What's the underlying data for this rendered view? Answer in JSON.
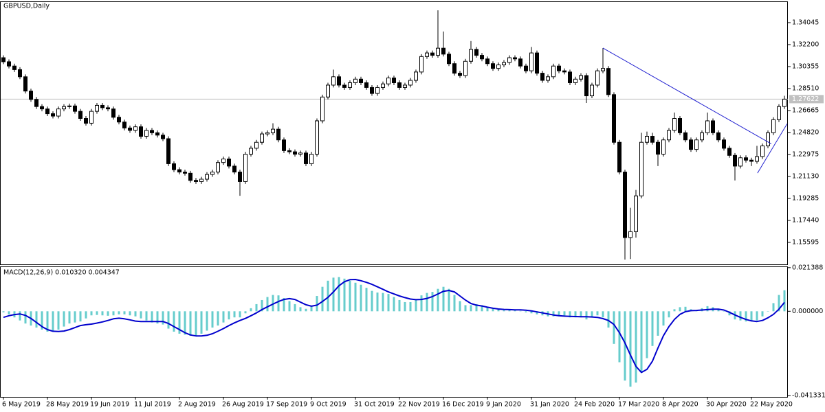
{
  "chart_data": [
    {
      "type": "candlestick",
      "title": "GBPUSD,Daily",
      "categories": [
        "6 May 2019",
        null,
        null,
        null,
        null,
        null,
        null,
        null,
        "28 May 2019",
        null,
        null,
        null,
        null,
        null,
        null,
        null,
        "19 Jun 2019",
        null,
        null,
        null,
        null,
        null,
        null,
        null,
        "11 Jul 2019",
        null,
        null,
        null,
        null,
        null,
        null,
        null,
        "2 Aug 2019",
        null,
        null,
        null,
        null,
        null,
        null,
        null,
        "26 Aug 2019",
        null,
        null,
        null,
        null,
        null,
        null,
        null,
        "17 Sep 2019",
        null,
        null,
        null,
        null,
        null,
        null,
        null,
        "9 Oct 2019",
        null,
        null,
        null,
        null,
        null,
        null,
        null,
        "31 Oct 2019",
        null,
        null,
        null,
        null,
        null,
        null,
        null,
        "22 Nov 2019",
        null,
        null,
        null,
        null,
        null,
        null,
        null,
        "16 Dec 2019",
        null,
        null,
        null,
        null,
        null,
        null,
        null,
        "9 Jan 2020",
        null,
        null,
        null,
        null,
        null,
        null,
        null,
        "31 Jan 2020",
        null,
        null,
        null,
        null,
        null,
        null,
        null,
        "24 Feb 2020",
        null,
        null,
        null,
        null,
        null,
        null,
        null,
        "17 Mar 2020",
        null,
        null,
        null,
        null,
        null,
        null,
        null,
        "8 Apr 2020",
        null,
        null,
        null,
        null,
        null,
        null,
        null,
        "30 Apr 2020",
        null,
        null,
        null,
        null,
        null,
        null,
        null,
        "22 May 2020",
        null,
        null,
        null,
        null,
        null,
        null
      ],
      "open": [
        1.311,
        1.3076,
        1.304,
        1.301,
        1.295,
        1.283,
        1.276,
        1.27,
        1.268,
        1.264,
        1.262,
        1.268,
        1.27,
        1.2705,
        1.266,
        1.26,
        1.256,
        1.266,
        1.271,
        1.269,
        1.268,
        1.261,
        1.257,
        1.252,
        1.25,
        1.253,
        1.245,
        1.25,
        1.248,
        1.246,
        1.243,
        1.222,
        1.217,
        1.215,
        1.214,
        1.208,
        1.207,
        1.209,
        1.213,
        1.215,
        1.223,
        1.226,
        1.22,
        1.215,
        1.207,
        1.23,
        1.235,
        1.24,
        1.247,
        1.248,
        1.251,
        1.242,
        1.233,
        1.232,
        1.23,
        1.231,
        1.222,
        1.23,
        1.258,
        1.278,
        1.288,
        1.295,
        1.288,
        1.286,
        1.29,
        1.293,
        1.29,
        1.286,
        1.281,
        1.286,
        1.289,
        1.294,
        1.29,
        1.286,
        1.288,
        1.292,
        1.299,
        1.312,
        1.315,
        1.313,
        1.319,
        1.314,
        1.306,
        1.298,
        1.296,
        1.308,
        1.318,
        1.313,
        1.31,
        1.306,
        1.302,
        1.305,
        1.307,
        1.311,
        1.31,
        1.304,
        1.3,
        1.315,
        1.298,
        1.292,
        1.295,
        1.304,
        1.3,
        1.299,
        1.29,
        1.293,
        1.296,
        1.279,
        1.288,
        1.3,
        1.302,
        1.28,
        1.24,
        1.215,
        1.16,
        1.165,
        1.195,
        1.24,
        1.245,
        1.24,
        1.23,
        1.242,
        1.25,
        1.26,
        1.248,
        1.242,
        1.234,
        1.242,
        1.248,
        1.258,
        1.248,
        1.242,
        1.235,
        1.229,
        1.22,
        1.227,
        1.225,
        1.224,
        1.228,
        1.237,
        1.248,
        1.259,
        1.27
      ],
      "high": [
        1.313,
        1.3096,
        1.306,
        1.303,
        1.297,
        1.285,
        1.278,
        1.272,
        1.27,
        1.266,
        1.27,
        1.272,
        1.2725,
        1.2725,
        1.268,
        1.262,
        1.268,
        1.273,
        1.273,
        1.271,
        1.27,
        1.263,
        1.259,
        1.254,
        1.255,
        1.255,
        1.252,
        1.252,
        1.25,
        1.248,
        1.245,
        1.224,
        1.219,
        1.217,
        1.216,
        1.21,
        1.211,
        1.215,
        1.217,
        1.225,
        1.228,
        1.228,
        1.222,
        1.217,
        1.232,
        1.237,
        1.242,
        1.249,
        1.25,
        1.256,
        1.253,
        1.244,
        1.235,
        1.234,
        1.233,
        1.233,
        1.232,
        1.26,
        1.28,
        1.29,
        1.301,
        1.297,
        1.29,
        1.292,
        1.295,
        1.295,
        1.292,
        1.288,
        1.288,
        1.291,
        1.296,
        1.296,
        1.292,
        1.29,
        1.294,
        1.301,
        1.314,
        1.317,
        1.317,
        1.3508,
        1.333,
        1.316,
        1.308,
        1.3,
        1.31,
        1.325,
        1.32,
        1.315,
        1.312,
        1.308,
        1.307,
        1.309,
        1.313,
        1.313,
        1.312,
        1.306,
        1.32,
        1.317,
        1.3,
        1.297,
        1.306,
        1.306,
        1.302,
        1.301,
        1.295,
        1.298,
        1.298,
        1.29,
        1.302,
        1.3191,
        1.304,
        1.282,
        1.242,
        1.217,
        1.185,
        1.2,
        1.248,
        1.249,
        1.248,
        1.242,
        1.244,
        1.252,
        1.265,
        1.262,
        1.25,
        1.244,
        1.244,
        1.25,
        1.265,
        1.26,
        1.25,
        1.244,
        1.237,
        1.231,
        1.229,
        1.229,
        1.227,
        1.237,
        1.239,
        1.25,
        1.261,
        1.272,
        1.279
      ],
      "low": [
        1.3056,
        1.302,
        1.299,
        1.293,
        1.281,
        1.274,
        1.268,
        1.266,
        1.262,
        1.26,
        1.26,
        1.266,
        1.268,
        1.264,
        1.258,
        1.254,
        1.254,
        1.264,
        1.267,
        1.266,
        1.259,
        1.255,
        1.25,
        1.248,
        1.248,
        1.243,
        1.243,
        1.246,
        1.244,
        1.241,
        1.22,
        1.215,
        1.213,
        1.212,
        1.206,
        1.205,
        1.205,
        1.207,
        1.211,
        1.213,
        1.221,
        1.218,
        1.213,
        1.1951,
        1.205,
        1.228,
        1.233,
        1.238,
        1.245,
        1.246,
        1.24,
        1.231,
        1.23,
        1.228,
        1.228,
        1.22,
        1.22,
        1.228,
        1.256,
        1.276,
        1.286,
        1.286,
        1.284,
        1.284,
        1.288,
        1.288,
        1.284,
        1.279,
        1.279,
        1.284,
        1.287,
        1.288,
        1.284,
        1.284,
        1.286,
        1.29,
        1.297,
        1.31,
        1.311,
        1.311,
        1.312,
        1.304,
        1.296,
        1.294,
        1.294,
        1.306,
        1.311,
        1.308,
        1.304,
        1.3,
        1.3,
        1.303,
        1.305,
        1.308,
        1.302,
        1.298,
        1.298,
        1.296,
        1.29,
        1.29,
        1.293,
        1.298,
        1.297,
        1.288,
        1.288,
        1.291,
        1.273,
        1.277,
        1.286,
        1.298,
        1.278,
        1.238,
        1.213,
        1.1415,
        1.142,
        1.16,
        1.193,
        1.238,
        1.238,
        1.22,
        1.228,
        1.24,
        1.248,
        1.246,
        1.24,
        1.232,
        1.232,
        1.24,
        1.246,
        1.246,
        1.24,
        1.233,
        1.227,
        1.208,
        1.218,
        1.223,
        1.22,
        1.222,
        1.226,
        1.235,
        1.246,
        1.257,
        1.268
      ],
      "close": [
        1.3076,
        1.304,
        1.301,
        1.295,
        1.283,
        1.276,
        1.27,
        1.268,
        1.264,
        1.262,
        1.268,
        1.27,
        1.2705,
        1.266,
        1.26,
        1.256,
        1.266,
        1.271,
        1.269,
        1.268,
        1.261,
        1.257,
        1.252,
        1.25,
        1.253,
        1.245,
        1.25,
        1.248,
        1.246,
        1.243,
        1.222,
        1.217,
        1.215,
        1.214,
        1.208,
        1.207,
        1.209,
        1.213,
        1.215,
        1.223,
        1.226,
        1.22,
        1.215,
        1.207,
        1.23,
        1.235,
        1.24,
        1.247,
        1.248,
        1.251,
        1.242,
        1.233,
        1.232,
        1.23,
        1.231,
        1.222,
        1.23,
        1.258,
        1.278,
        1.288,
        1.295,
        1.288,
        1.286,
        1.29,
        1.293,
        1.29,
        1.286,
        1.281,
        1.286,
        1.289,
        1.294,
        1.29,
        1.286,
        1.288,
        1.292,
        1.299,
        1.312,
        1.315,
        1.313,
        1.319,
        1.314,
        1.306,
        1.298,
        1.296,
        1.308,
        1.318,
        1.313,
        1.31,
        1.306,
        1.302,
        1.305,
        1.307,
        1.311,
        1.31,
        1.304,
        1.3,
        1.315,
        1.298,
        1.292,
        1.295,
        1.304,
        1.3,
        1.299,
        1.29,
        1.293,
        1.296,
        1.279,
        1.288,
        1.3,
        1.302,
        1.28,
        1.24,
        1.215,
        1.16,
        1.165,
        1.195,
        1.24,
        1.245,
        1.24,
        1.23,
        1.242,
        1.25,
        1.26,
        1.248,
        1.242,
        1.234,
        1.242,
        1.248,
        1.258,
        1.248,
        1.242,
        1.235,
        1.229,
        1.22,
        1.227,
        1.225,
        1.224,
        1.228,
        1.237,
        1.248,
        1.259,
        1.27,
        1.27622
      ],
      "color_up": "#ffffff",
      "color_down": "#000000",
      "ylim": [
        1.1375,
        1.3583
      ],
      "yticks": [
        1.34045,
        {
          "value": 1.322,
          "label": "1.32200"
        },
        1.30355,
        {
          "value": 1.2851,
          "label": "1.28510"
        },
        1.26665,
        {
          "value": 1.2482,
          "label": "1.24820"
        },
        1.22975,
        {
          "value": 1.2113,
          "label": "1.21130"
        },
        1.19285,
        {
          "value": 1.1744,
          "label": "1.17440"
        },
        1.15595
      ],
      "last_price": 1.27622,
      "trendlines": [
        {
          "from": [
            109,
            1.3191
          ],
          "to": [
            139.6,
            1.2387
          ],
          "color": "#2020d0"
        },
        {
          "from": [
            137.1,
            1.2141
          ],
          "to": [
            142.5,
            1.2556
          ],
          "color": "#2020d0"
        }
      ]
    },
    {
      "type": "macd",
      "title": "MACD(12,26,9) 0.010320 0.004347",
      "histogram": {
        "color": "#66cccc",
        "values": [
          -0.0005,
          -0.0015,
          -0.003,
          -0.0045,
          -0.006,
          -0.007,
          -0.008,
          -0.009,
          -0.01,
          -0.01,
          -0.009,
          -0.0075,
          -0.006,
          -0.0055,
          -0.005,
          -0.0035,
          -0.002,
          -0.0018,
          -0.002,
          -0.0022,
          -0.002,
          -0.0015,
          -0.0015,
          -0.002,
          -0.0025,
          -0.0035,
          -0.0045,
          -0.0055,
          -0.006,
          -0.0065,
          -0.0085,
          -0.01,
          -0.011,
          -0.0115,
          -0.012,
          -0.012,
          -0.011,
          -0.0095,
          -0.008,
          -0.007,
          -0.0055,
          -0.004,
          -0.003,
          -0.003,
          -0.001,
          0.0015,
          0.0035,
          0.0055,
          0.007,
          0.008,
          0.0078,
          0.0065,
          0.005,
          0.0035,
          0.002,
          0.0012,
          0.0025,
          0.0075,
          0.012,
          0.015,
          0.0165,
          0.0168,
          0.016,
          0.015,
          0.014,
          0.013,
          0.0115,
          0.01,
          0.0092,
          0.009,
          0.0085,
          0.007,
          0.0055,
          0.0045,
          0.0045,
          0.0058,
          0.0078,
          0.009,
          0.0095,
          0.011,
          0.012,
          0.011,
          0.008,
          0.005,
          0.003,
          0.003,
          0.0035,
          0.003,
          0.002,
          0.0012,
          0.0008,
          0.0005,
          0.0005,
          0.0005,
          0.0002,
          -0.0005,
          -0.001,
          -0.0015,
          -0.002,
          -0.0025,
          -0.0025,
          -0.0025,
          -0.0025,
          -0.003,
          -0.003,
          -0.003,
          -0.004,
          -0.003,
          -0.002,
          -0.003,
          -0.008,
          -0.016,
          -0.025,
          -0.034,
          -0.037,
          -0.035,
          -0.03,
          -0.023,
          -0.017,
          -0.012,
          -0.007,
          -0.003,
          0.001,
          0.002,
          0.0022,
          0.001,
          0.0005,
          0.0015,
          0.0025,
          0.002,
          0.001,
          0.0,
          -0.002,
          -0.004,
          -0.0045,
          -0.005,
          -0.005,
          -0.0045,
          -0.0025,
          0.0,
          0.004,
          0.008,
          0.01032
        ]
      },
      "signal": {
        "color": "#0000cd",
        "values": [
          -0.003,
          -0.0022,
          -0.0016,
          -0.0013,
          -0.002,
          -0.0035,
          -0.0055,
          -0.0075,
          -0.009,
          -0.0098,
          -0.0099,
          -0.0097,
          -0.009,
          -0.008,
          -0.007,
          -0.0066,
          -0.0063,
          -0.0058,
          -0.0052,
          -0.0045,
          -0.0037,
          -0.0034,
          -0.0037,
          -0.0042,
          -0.0048,
          -0.005,
          -0.005,
          -0.005,
          -0.005,
          -0.005,
          -0.006,
          -0.0075,
          -0.009,
          -0.0105,
          -0.0116,
          -0.0121,
          -0.0121,
          -0.0118,
          -0.011,
          -0.0098,
          -0.0085,
          -0.007,
          -0.0057,
          -0.0045,
          -0.0035,
          -0.0022,
          -0.0008,
          0.0008,
          0.0022,
          0.0035,
          0.0048,
          0.0058,
          0.0062,
          0.0058,
          0.0045,
          0.0032,
          0.0025,
          0.003,
          0.0048,
          0.0068,
          0.0095,
          0.0125,
          0.0145,
          0.0155,
          0.0156,
          0.015,
          0.0142,
          0.0132,
          0.012,
          0.0108,
          0.0095,
          0.0085,
          0.0075,
          0.0067,
          0.006,
          0.0057,
          0.0058,
          0.0063,
          0.0072,
          0.0085,
          0.0098,
          0.0102,
          0.0095,
          0.0075,
          0.0055,
          0.0038,
          0.003,
          0.0026,
          0.002,
          0.0015,
          0.0011,
          0.0009,
          0.0008,
          0.0007,
          0.0007,
          0.0005,
          0.0002,
          -0.0003,
          -0.0008,
          -0.0013,
          -0.0018,
          -0.0022,
          -0.0024,
          -0.0025,
          -0.0026,
          -0.0027,
          -0.0027,
          -0.0028,
          -0.003,
          -0.0036,
          -0.0045,
          -0.0065,
          -0.0105,
          -0.0155,
          -0.0215,
          -0.027,
          -0.03,
          -0.0285,
          -0.0245,
          -0.018,
          -0.012,
          -0.0075,
          -0.004,
          -0.0015,
          -0.0002,
          0.0003,
          0.0004,
          0.0006,
          0.0008,
          0.001,
          0.001,
          0.0006,
          -0.0005,
          -0.0018,
          -0.003,
          -0.004,
          -0.0047,
          -0.005,
          -0.0045,
          -0.0032,
          -0.0015,
          0.001,
          0.004347
        ]
      },
      "ylim": [
        -0.042,
        0.022
      ],
      "yticks": [
        0.021388,
        {
          "value": 0,
          "label": "0.000000"
        },
        -0.041331
      ]
    }
  ]
}
